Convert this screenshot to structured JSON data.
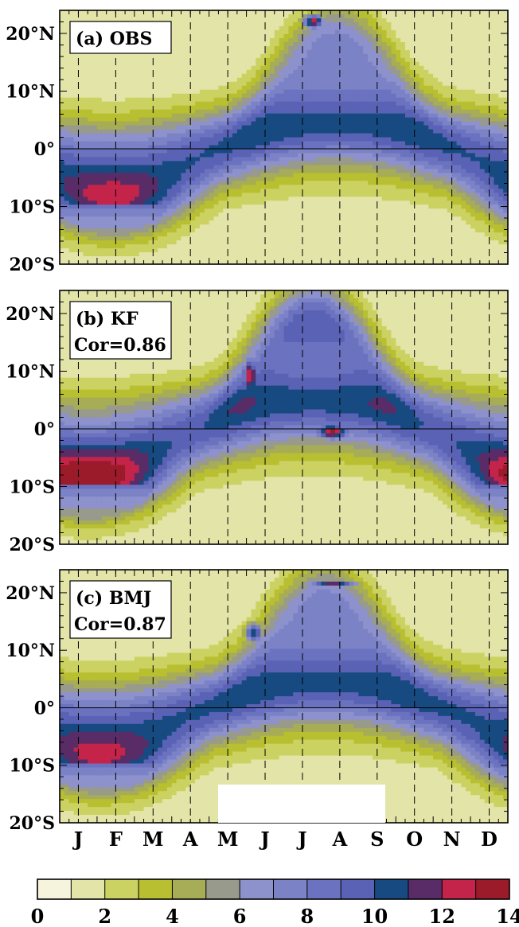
{
  "chart_data": {
    "type": "heatmap",
    "panels": [
      {
        "id": "a",
        "label": "(a) OBS",
        "cor": "",
        "peak_month": 7.9,
        "band_lat": 3.0,
        "max_north": 10.3,
        "max_south": 9.4,
        "south_cap": 9.6,
        "hotspots": [
          {
            "month": 7.3,
            "lat": 22.0,
            "value": 12.5,
            "dm": 0.35,
            "dl": 1.5
          }
        ]
      },
      {
        "id": "b",
        "label": "(b) KF",
        "cor": "Cor=0.86",
        "peak_month": 7.3,
        "band_lat": 4.5,
        "max_north": 14.8,
        "max_south": 14.2,
        "south_cap": 14.0,
        "hotspots": [
          {
            "month": 7.8,
            "lat": -0.5,
            "value": 13.3,
            "dm": 0.55,
            "dl": 1.6
          },
          {
            "month": 5.6,
            "lat": 9.0,
            "value": 13.2,
            "dm": 0.25,
            "dl": 4.0
          }
        ]
      },
      {
        "id": "c",
        "label": "(c) BMJ",
        "cor": "Cor=0.87",
        "peak_month": 7.6,
        "band_lat": 2.0,
        "max_north": 10.4,
        "max_south": 9.0,
        "south_cap": 9.3,
        "hotspots": [
          {
            "month": 7.8,
            "lat": 21.5,
            "value": 11.6,
            "dm": 0.8,
            "dl": 0.8
          },
          {
            "month": 5.7,
            "lat": 13.0,
            "value": 10.8,
            "dm": 0.3,
            "dl": 2.0
          },
          {
            "month": 2.0,
            "lat": -8.0,
            "value": 10.6,
            "dm": 0.3,
            "dl": 1.4
          }
        ]
      }
    ],
    "x_ticks": [
      "J",
      "F",
      "M",
      "A",
      "M",
      "J",
      "J",
      "A",
      "S",
      "O",
      "N",
      "D"
    ],
    "y_ticks": [
      "20°N",
      "10°N",
      "0°",
      "10°S",
      "20°S"
    ],
    "y_tick_values": [
      20,
      10,
      0,
      -10,
      -20
    ],
    "xlim": [
      0.5,
      12.5
    ],
    "ylim": [
      -20,
      24
    ],
    "colorbar": {
      "min": 0,
      "max": 14,
      "step": 1,
      "tick_labels": [
        "0",
        "2",
        "4",
        "6",
        "8",
        "10",
        "12",
        "14"
      ],
      "tick_values": [
        0,
        2,
        4,
        6,
        8,
        10,
        12,
        14
      ],
      "colors": [
        "#f6f4dc",
        "#e3e4a8",
        "#ccd262",
        "#b8bf30",
        "#a7ac56",
        "#989a8c",
        "#8d91cc",
        "#7b82c6",
        "#6b72bf",
        "#5a62b5",
        "#164a80",
        "#5a2c67",
        "#c4244a",
        "#9b1b2a"
      ]
    }
  }
}
